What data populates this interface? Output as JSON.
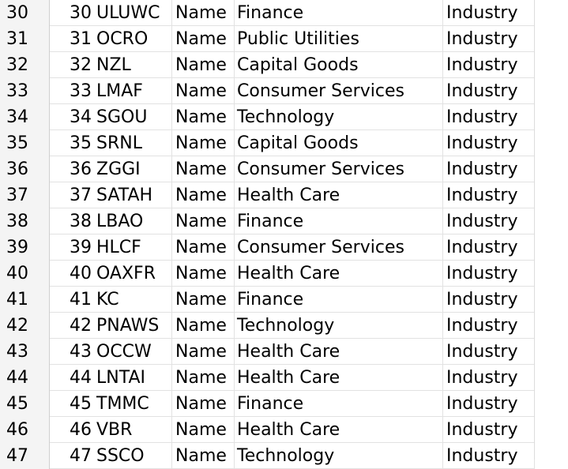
{
  "grid": {
    "rows": [
      {
        "row": "30",
        "id": "30",
        "symbol": "ULUWC",
        "name": "Name",
        "sector": "Finance",
        "industry": "Industry"
      },
      {
        "row": "31",
        "id": "31",
        "symbol": "OCRO",
        "name": "Name",
        "sector": "Public Utilities",
        "industry": "Industry"
      },
      {
        "row": "32",
        "id": "32",
        "symbol": "NZL",
        "name": "Name",
        "sector": "Capital Goods",
        "industry": "Industry"
      },
      {
        "row": "33",
        "id": "33",
        "symbol": "LMAF",
        "name": "Name",
        "sector": "Consumer Services",
        "industry": "Industry"
      },
      {
        "row": "34",
        "id": "34",
        "symbol": "SGOU",
        "name": "Name",
        "sector": "Technology",
        "industry": "Industry"
      },
      {
        "row": "35",
        "id": "35",
        "symbol": "SRNL",
        "name": "Name",
        "sector": "Capital Goods",
        "industry": "Industry"
      },
      {
        "row": "36",
        "id": "36",
        "symbol": "ZGGI",
        "name": "Name",
        "sector": "Consumer Services",
        "industry": "Industry"
      },
      {
        "row": "37",
        "id": "37",
        "symbol": "SATAH",
        "name": "Name",
        "sector": "Health Care",
        "industry": "Industry"
      },
      {
        "row": "38",
        "id": "38",
        "symbol": "LBAO",
        "name": "Name",
        "sector": "Finance",
        "industry": "Industry"
      },
      {
        "row": "39",
        "id": "39",
        "symbol": "HLCF",
        "name": "Name",
        "sector": "Consumer Services",
        "industry": "Industry"
      },
      {
        "row": "40",
        "id": "40",
        "symbol": "OAXFR",
        "name": "Name",
        "sector": "Health Care",
        "industry": "Industry"
      },
      {
        "row": "41",
        "id": "41",
        "symbol": "KC",
        "name": "Name",
        "sector": "Finance",
        "industry": "Industry"
      },
      {
        "row": "42",
        "id": "42",
        "symbol": "PNAWS",
        "name": "Name",
        "sector": "Technology",
        "industry": "Industry"
      },
      {
        "row": "43",
        "id": "43",
        "symbol": "OCCW",
        "name": "Name",
        "sector": "Health Care",
        "industry": "Industry"
      },
      {
        "row": "44",
        "id": "44",
        "symbol": "LNTAI",
        "name": "Name",
        "sector": "Health Care",
        "industry": "Industry"
      },
      {
        "row": "45",
        "id": "45",
        "symbol": "TMMC",
        "name": "Name",
        "sector": "Finance",
        "industry": "Industry"
      },
      {
        "row": "46",
        "id": "46",
        "symbol": "VBR",
        "name": "Name",
        "sector": "Health Care",
        "industry": "Industry"
      },
      {
        "row": "47",
        "id": "47",
        "symbol": "SSCO",
        "name": "Name",
        "sector": "Technology",
        "industry": "Industry"
      }
    ]
  }
}
